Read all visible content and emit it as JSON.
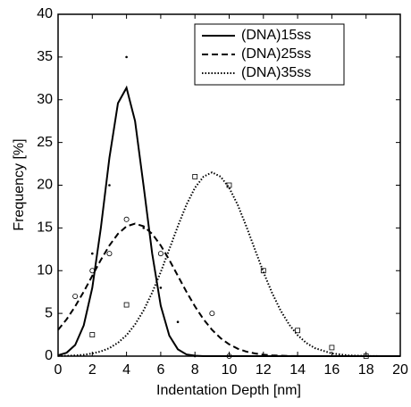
{
  "chart_data": {
    "type": "line",
    "xlabel": "Indentation Depth [nm]",
    "ylabel": "Frequency [%]",
    "xlim": [
      0,
      20
    ],
    "ylim": [
      0,
      40
    ],
    "xticks": [
      0,
      2,
      4,
      6,
      8,
      10,
      12,
      14,
      16,
      18,
      20
    ],
    "yticks": [
      0,
      5,
      10,
      15,
      20,
      25,
      30,
      35,
      40
    ],
    "legend": "top right",
    "x": [
      0,
      0.5,
      1,
      1.5,
      2,
      2.5,
      3,
      3.5,
      4,
      4.5,
      5,
      5.5,
      6,
      6.5,
      7,
      7.5,
      8,
      8.5,
      9,
      9.5,
      10,
      10.5,
      11,
      11.5,
      12,
      12.5,
      13,
      13.5,
      14,
      14.5,
      15,
      16,
      17,
      18,
      19,
      20
    ],
    "series": [
      {
        "name": "(DNA)15ss",
        "color": "#000000",
        "dash": "solid",
        "values": [
          0.1,
          0.4,
          1.3,
          3.6,
          8.0,
          15.0,
          23.2,
          29.6,
          31.4,
          27.5,
          19.9,
          12.0,
          5.9,
          2.4,
          0.8,
          0.2,
          0.05,
          0,
          0,
          0,
          0,
          0,
          0,
          0,
          0,
          0,
          0,
          0,
          0,
          0,
          0,
          0,
          0,
          0,
          0,
          0
        ]
      },
      {
        "name": "(DNA)25ss",
        "color": "#000000",
        "dash": "dashed",
        "values": [
          3.07,
          4.31,
          5.82,
          7.54,
          9.4,
          11.26,
          12.95,
          14.31,
          15.19,
          15.5,
          15.19,
          14.31,
          12.95,
          11.26,
          9.4,
          7.54,
          5.82,
          4.31,
          3.07,
          2.1,
          1.38,
          0.87,
          0.53,
          0.31,
          0.17,
          0.09,
          0.05,
          0.02,
          0.01,
          0,
          0,
          0,
          0,
          0,
          0,
          0
        ]
      },
      {
        "name": "(DNA)35ss",
        "color": "#000000",
        "dash": "dotted",
        "values": [
          0.02,
          0.04,
          0.08,
          0.16,
          0.31,
          0.55,
          0.94,
          1.56,
          2.45,
          3.71,
          5.36,
          7.43,
          9.84,
          12.5,
          15.2,
          17.7,
          19.7,
          21.0,
          21.5,
          21.0,
          19.7,
          17.7,
          15.2,
          12.5,
          9.84,
          7.43,
          5.36,
          3.71,
          2.45,
          1.56,
          0.94,
          0.31,
          0.08,
          0.02,
          0,
          0
        ]
      }
    ],
    "points": [
      {
        "marker": "dot",
        "color": "#000000",
        "x": [
          2,
          3,
          4,
          5,
          6,
          7,
          8
        ],
        "values": [
          12,
          20,
          35,
          15,
          8,
          4,
          0
        ]
      },
      {
        "marker": "circle",
        "color": "#000000",
        "x": [
          1,
          2,
          3,
          4,
          6,
          9,
          10
        ],
        "values": [
          7,
          10,
          12,
          16,
          12,
          5,
          0
        ]
      },
      {
        "marker": "square",
        "color": "#000000",
        "x": [
          2,
          4,
          8,
          10,
          12,
          14,
          16,
          18
        ],
        "values": [
          2.5,
          6,
          21,
          20,
          10,
          3,
          1,
          0
        ]
      }
    ]
  }
}
